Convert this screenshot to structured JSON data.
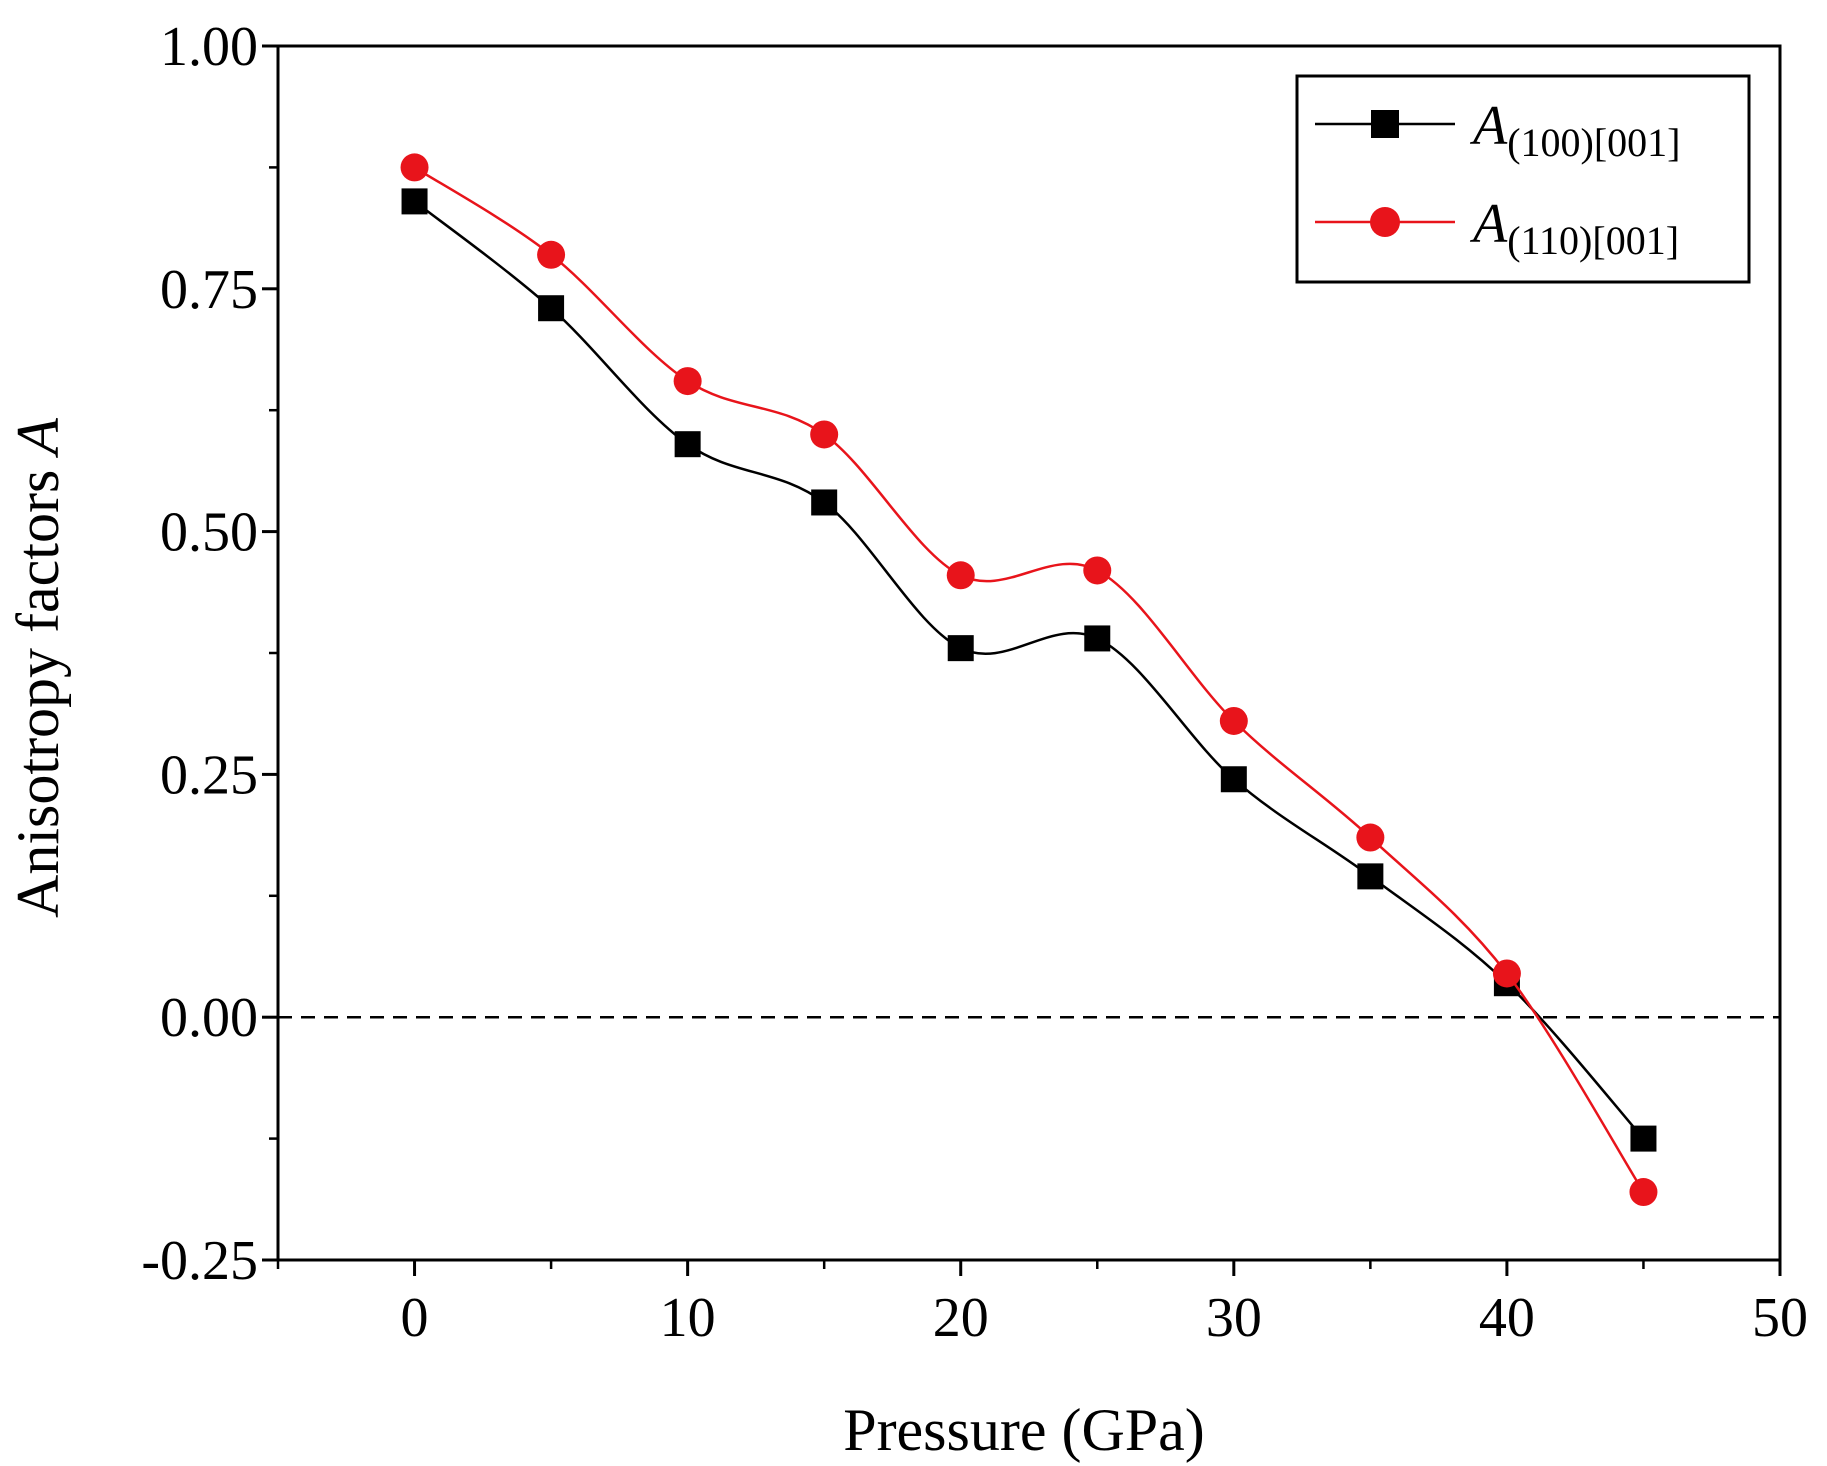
{
  "chart_data": {
    "type": "line",
    "title": "",
    "xlabel": "Pressure (GPa)",
    "ylabel": {
      "prefix": "Anisotropy factors ",
      "italic": "A"
    },
    "xlim": [
      -5,
      50
    ],
    "ylim": [
      -0.25,
      1.0
    ],
    "xticks": [
      0,
      10,
      20,
      30,
      40,
      50
    ],
    "xtick_labels": [
      "0",
      "10",
      "20",
      "30",
      "40",
      "50"
    ],
    "yticks": [
      -0.25,
      0,
      0.25,
      0.5,
      0.75,
      1.0
    ],
    "ytick_labels": [
      "-0.25",
      "0.00",
      "0.25",
      "0.50",
      "0.75",
      "1.00"
    ],
    "x": [
      0,
      5,
      10,
      15,
      20,
      25,
      30,
      35,
      40,
      45
    ],
    "series": [
      {
        "name": "A(100)[001]",
        "label_main": "A",
        "label_sub": "(100)[001]",
        "marker": "square",
        "color": "#000000",
        "values": [
          0.84,
          0.73,
          0.59,
          0.53,
          0.38,
          0.39,
          0.245,
          0.145,
          0.035,
          -0.125
        ]
      },
      {
        "name": "A(110)[001]",
        "label_main": "A",
        "label_sub": "(110)[001]",
        "marker": "circle",
        "color": "#e8141b",
        "values": [
          0.875,
          0.785,
          0.655,
          0.6,
          0.455,
          0.46,
          0.305,
          0.185,
          0.045,
          -0.18
        ]
      }
    ],
    "reference_line": {
      "y": 0,
      "style": "dashed"
    },
    "legend_position": "top-right",
    "grid": false
  }
}
